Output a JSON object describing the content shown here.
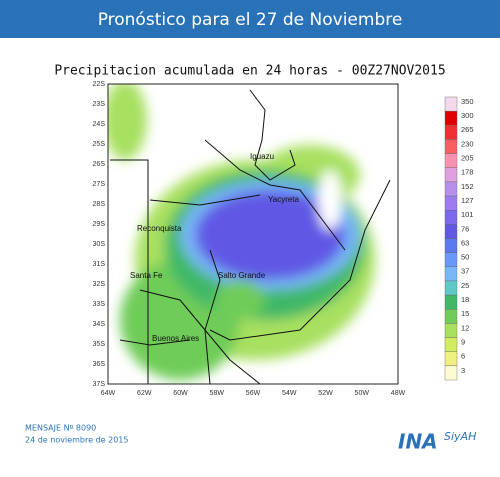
{
  "header": {
    "title": "Pronóstico para el 27 de Noviembre"
  },
  "map": {
    "title": "Precipitacion acumulada en 24 horas - 00Z27NOV2015",
    "lat_labels": [
      "22S",
      "23S",
      "24S",
      "25S",
      "26S",
      "27S",
      "28S",
      "29S",
      "30S",
      "31S",
      "32S",
      "33S",
      "34S",
      "35S",
      "36S",
      "37S"
    ],
    "lon_labels": [
      "64W",
      "62W",
      "60W",
      "58W",
      "56W",
      "54W",
      "52W",
      "50W",
      "48W"
    ],
    "places": [
      {
        "label": "Iguazu"
      },
      {
        "label": "Yacyreta"
      },
      {
        "label": "Reconquista"
      },
      {
        "label": "Santa Fe"
      },
      {
        "label": "Salto Grande"
      },
      {
        "label": "Buenos Aires"
      }
    ],
    "colorbar": {
      "labels": [
        350,
        300,
        265,
        230,
        205,
        178,
        152,
        127,
        101,
        76,
        63,
        50,
        37,
        25,
        18,
        15,
        12,
        9,
        6,
        3
      ],
      "colors": [
        "#f4d8ec",
        "#e00000",
        "#f03030",
        "#f86060",
        "#f890b0",
        "#e0a0e0",
        "#b890ec",
        "#9c7cf0",
        "#7c68ec",
        "#6058e4",
        "#5a78f0",
        "#6898f8",
        "#78b8f8",
        "#60c8c8",
        "#40b868",
        "#70cc58",
        "#a8e060",
        "#d0ec60",
        "#f0f080",
        "#fcfcd0"
      ]
    }
  },
  "footer": {
    "message": "MENSAJE Nº 8090",
    "date": "24 de noviembre de 2015"
  },
  "logo": {
    "name": "INA",
    "sub": "SiyAH"
  }
}
